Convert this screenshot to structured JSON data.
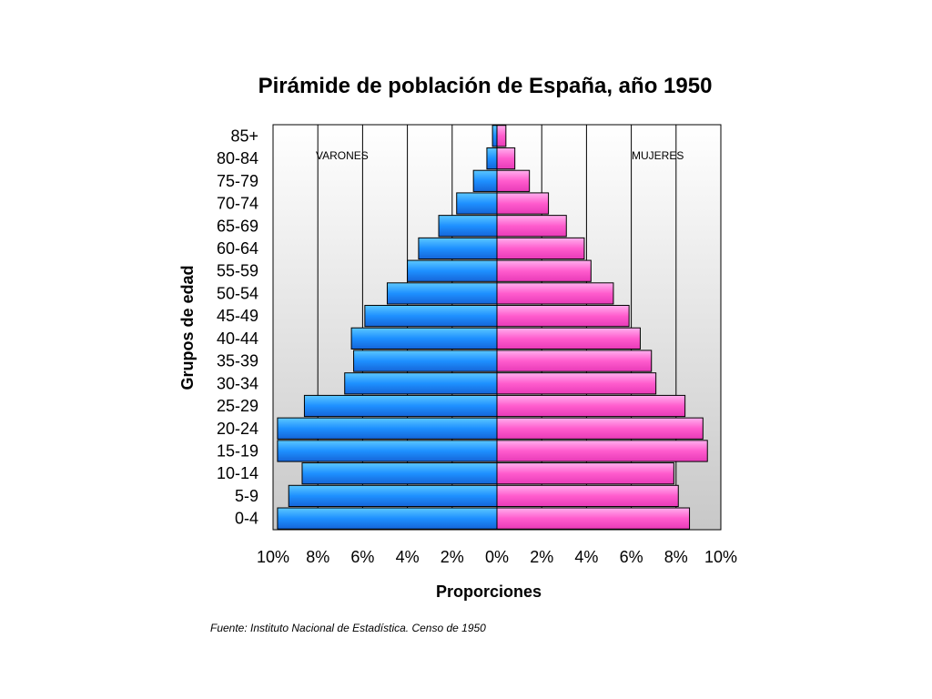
{
  "chart_data": {
    "type": "bar",
    "orientation": "horizontal",
    "title": "Pirámide de población de España, año 1950",
    "xlabel": "Proporciones",
    "ylabel": "Grupos de edad",
    "categories": [
      "0-4",
      "5-9",
      "10-14",
      "15-19",
      "20-24",
      "25-29",
      "30-34",
      "35-39",
      "40-44",
      "45-49",
      "50-54",
      "55-59",
      "60-64",
      "65-69",
      "70-74",
      "75-79",
      "80-84",
      "85+"
    ],
    "x_ticks": [
      "10%",
      "8%",
      "6%",
      "4%",
      "2%",
      "0%",
      "2%",
      "4%",
      "6%",
      "8%",
      "10%"
    ],
    "xlim": [
      -10,
      10
    ],
    "grid": "vertical",
    "series": [
      {
        "name": "VARONES",
        "values": [
          9.8,
          9.3,
          8.7,
          9.8,
          9.8,
          8.6,
          6.8,
          6.4,
          6.5,
          5.9,
          4.9,
          4.0,
          3.5,
          2.6,
          1.8,
          1.05,
          0.45,
          0.2
        ],
        "color": "#1e90ff"
      },
      {
        "name": "MUJERES",
        "values": [
          8.6,
          8.1,
          7.9,
          9.4,
          9.2,
          8.4,
          7.1,
          6.9,
          6.4,
          5.9,
          5.2,
          4.2,
          3.9,
          3.1,
          2.3,
          1.45,
          0.8,
          0.4
        ],
        "color": "#ff5ccd"
      }
    ],
    "annotations": [
      "VARONES",
      "MUJERES"
    ],
    "source": "Fuente: Instituto Nacional de Estadística. Censo de 1950"
  }
}
